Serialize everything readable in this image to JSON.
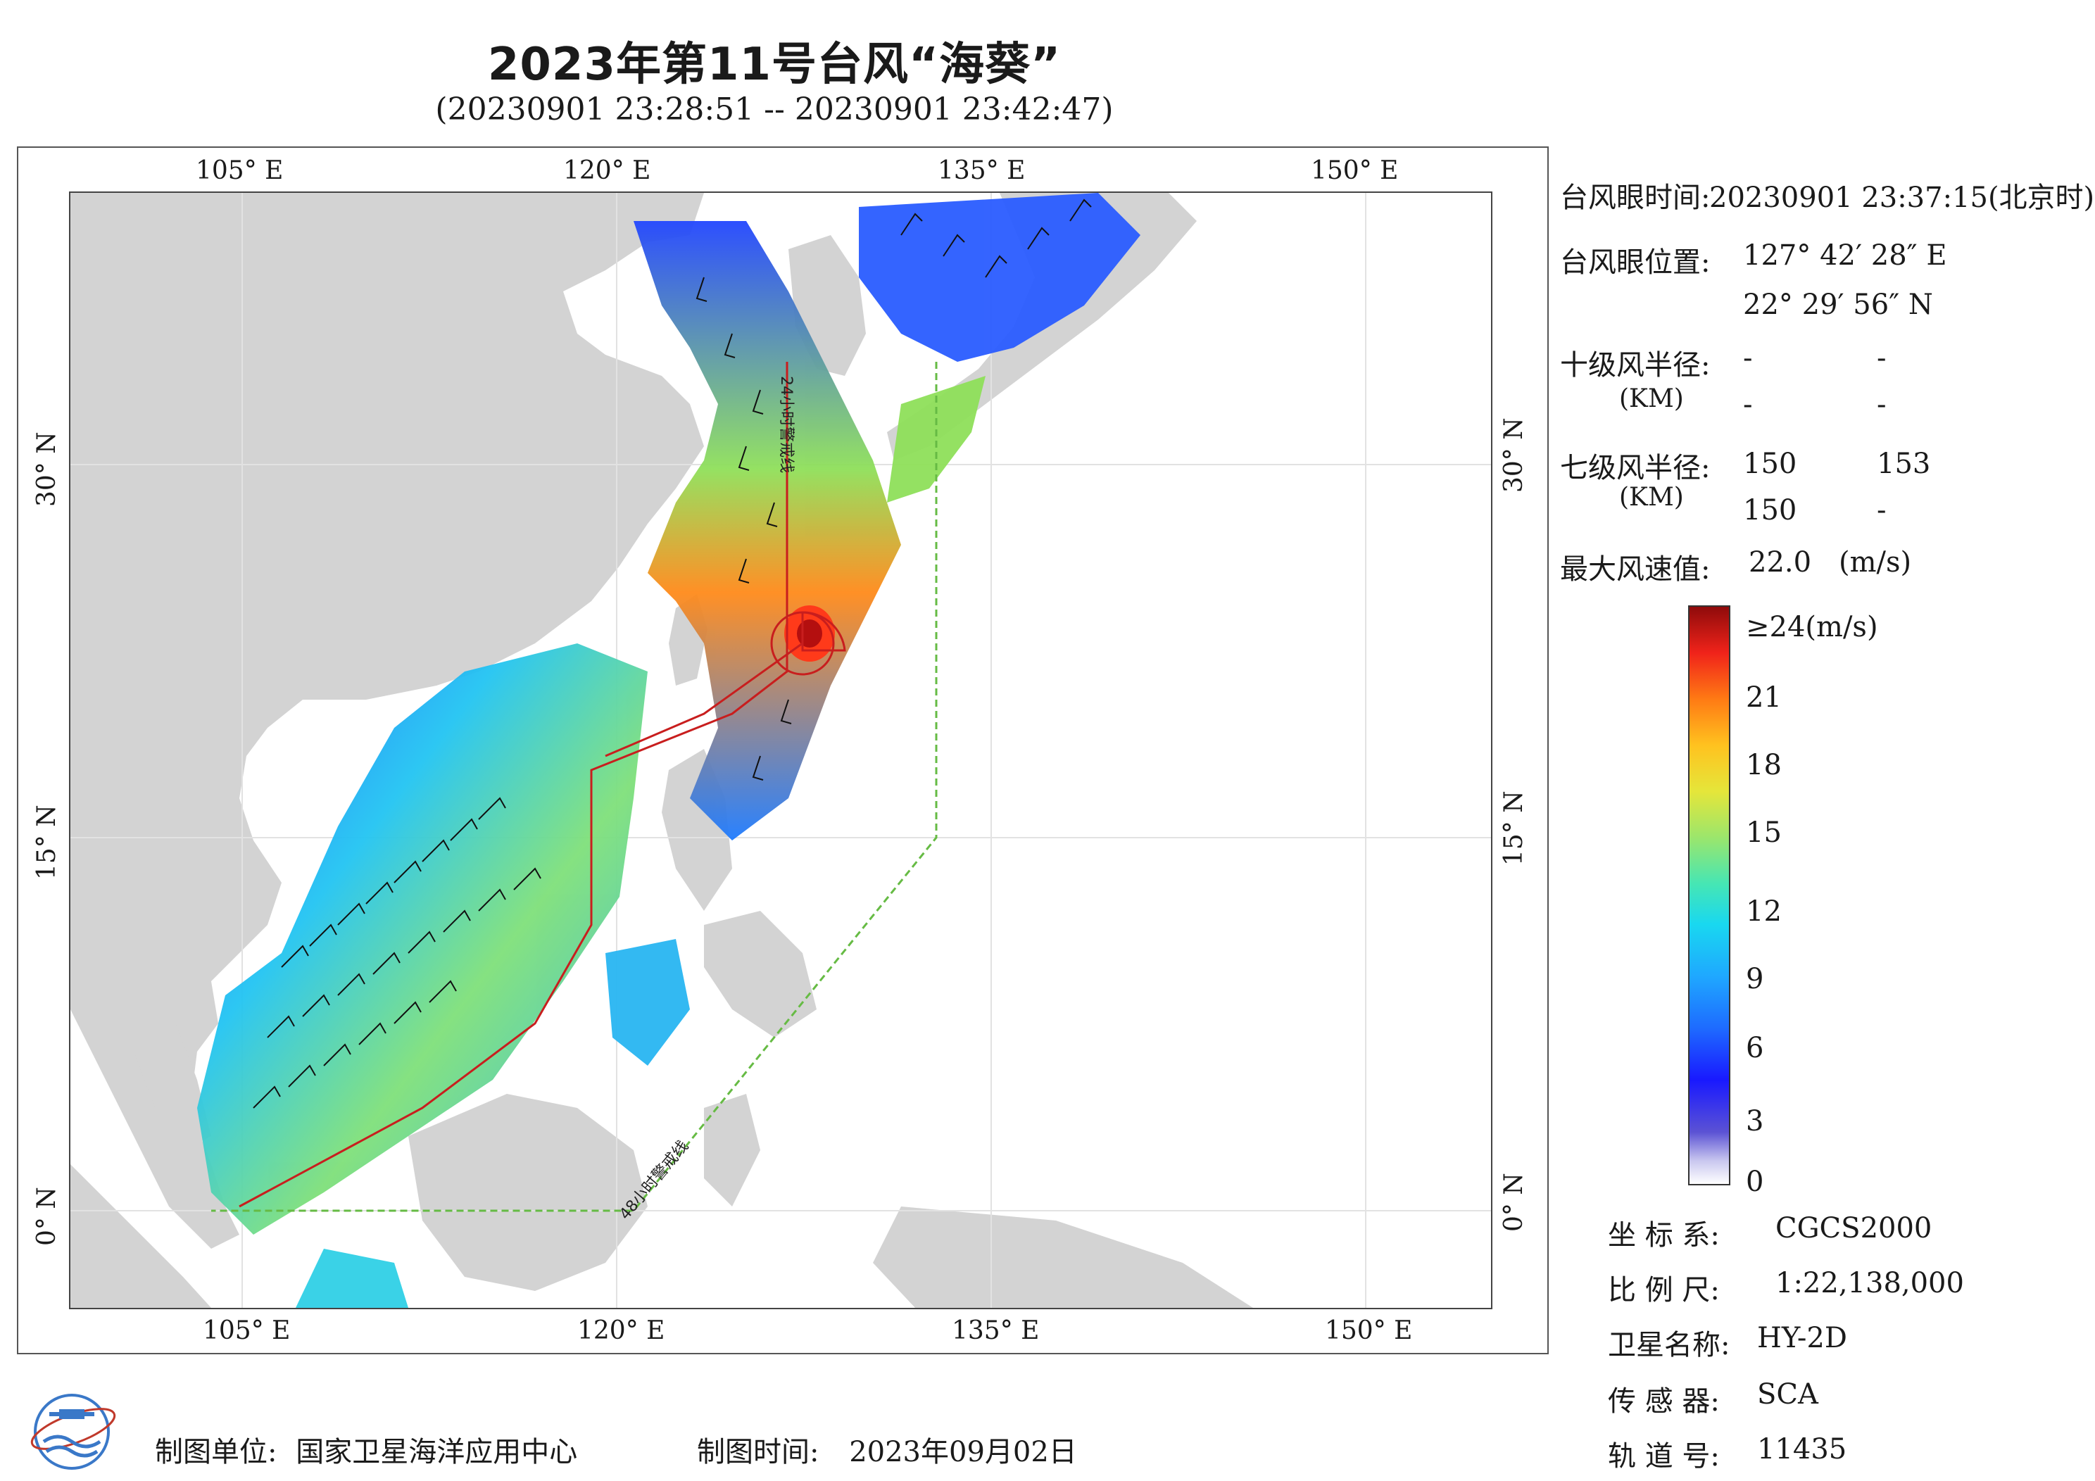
{
  "title": "2023年第11号台风“海葵”",
  "subtitle": "(20230901 23:28:51 -- 20230901 23:42:47)",
  "map": {
    "top_lon_labels": [
      "105° E",
      "120° E",
      "135° E",
      "150° E"
    ],
    "bottom_lon_labels": [
      "105° E",
      "120° E",
      "135° E",
      "150° E"
    ],
    "left_lat_labels": [
      "30° N",
      "15° N",
      "0° N"
    ],
    "right_lat_labels": [
      "30° N",
      "15° N",
      "0° N"
    ],
    "warning_24h_label": "24小时警戒线",
    "warning_48h_label": "48小时警戒线",
    "land_color": "#d3d3d3",
    "ocean_color": "#ffffff",
    "warning_24h_color": "#333333",
    "warning_48h_color": "#66bb44",
    "track_color": "#c81e1e"
  },
  "info": {
    "eye_time_label": "台风眼时间:",
    "eye_time_value": "20230901 23:37:15(北京时)",
    "eye_pos_label": "台风眼位置:",
    "eye_lon": "127° 42′ 28″ E",
    "eye_lat": "22° 29′ 56″ N",
    "r10_label": "十级风半径:",
    "r10_unit": "(KM)",
    "r10_values": [
      "-",
      "-",
      "-",
      "-"
    ],
    "r7_label": "七级风半径:",
    "r7_unit": "(KM)",
    "r7_values": [
      "150",
      "153",
      "150",
      "-"
    ],
    "max_wind_label": "最大风速值:",
    "max_wind_value": "22.0",
    "max_wind_unit": "(m/s)"
  },
  "colorbar": {
    "top_label": "≥24(m/s)",
    "ticks": [
      "21",
      "18",
      "15",
      "12",
      "9",
      "6",
      "3",
      "0"
    ]
  },
  "meta": {
    "crs_label": "坐 标 系:",
    "crs_value": "CGCS2000",
    "scale_label": "比 例 尺:",
    "scale_value": "1:22,138,000",
    "sat_label": "卫星名称:",
    "sat_value": "HY-2D",
    "sensor_label": "传 感 器:",
    "sensor_value": "SCA",
    "orbit_label": "轨 道 号:",
    "orbit_value": "11435"
  },
  "footer": {
    "unit_label": "制图单位:",
    "unit_value": "国家卫星海洋应用中心",
    "time_label": "制图时间:",
    "time_value": "2023年09月02日"
  }
}
